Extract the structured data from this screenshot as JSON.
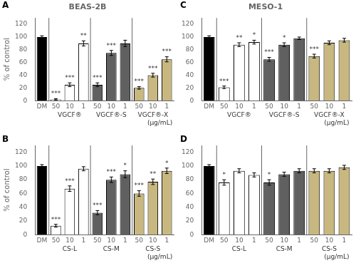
{
  "chart_data": [
    {
      "type": "bar",
      "panel_label": "A",
      "title": "BEAS-2B",
      "ylabel": "% of control",
      "categories": [
        "DM",
        "50",
        "10",
        "1",
        "50",
        "10",
        "1",
        "50",
        "10",
        "1"
      ],
      "values": [
        100,
        2,
        25,
        90,
        25,
        75,
        90,
        20,
        40,
        65
      ],
      "errors": [
        2,
        1,
        3,
        4,
        3,
        4,
        5,
        2,
        3,
        4
      ],
      "stars": [
        null,
        "***",
        "***",
        "**",
        "***",
        "***",
        null,
        "***",
        "***",
        "***"
      ],
      "colors": [
        "#000000",
        "#ffffff",
        "#ffffff",
        "#ffffff",
        "#606060",
        "#606060",
        "#606060",
        "#c8b880",
        "#c8b880",
        "#c8b880"
      ],
      "edge_color": "#000000",
      "group_labels": [
        "VGCF®",
        "VGCF®-S",
        "VGCF®-X"
      ],
      "unit_label": "(μg/mL)",
      "ylim": [
        0,
        130
      ],
      "yticks": [
        0,
        20,
        40,
        60,
        80,
        100,
        120
      ],
      "grid": false
    },
    {
      "type": "bar",
      "panel_label": "C",
      "title": "MESO-1",
      "categories": [
        "DM",
        "50",
        "10",
        "1",
        "50",
        "10",
        "1",
        "50",
        "10",
        "1"
      ],
      "values": [
        100,
        21,
        88,
        92,
        65,
        88,
        98,
        70,
        91,
        95
      ],
      "errors": [
        2,
        2,
        3,
        3,
        3,
        3,
        2,
        3,
        3,
        3
      ],
      "stars": [
        null,
        "***",
        "**",
        "*",
        "***",
        "*",
        null,
        "***",
        null,
        null
      ],
      "colors": [
        "#000000",
        "#ffffff",
        "#ffffff",
        "#ffffff",
        "#606060",
        "#606060",
        "#606060",
        "#c8b880",
        "#c8b880",
        "#c8b880"
      ],
      "edge_color": "#000000",
      "group_labels": [
        "VGCF®",
        "VGCF®-S",
        "VGCF®-X"
      ],
      "unit_label": "(μg/mL)",
      "ylim": [
        0,
        130
      ],
      "yticks": [
        0,
        20,
        40,
        60,
        80,
        100,
        120
      ],
      "grid": false
    },
    {
      "type": "bar",
      "panel_label": "B",
      "ylabel": "% of control",
      "categories": [
        "DM",
        "50",
        "10",
        "1",
        "50",
        "10",
        "1",
        "50",
        "10",
        "1"
      ],
      "values": [
        100,
        13,
        67,
        96,
        32,
        80,
        88,
        60,
        77,
        93
      ],
      "errors": [
        2,
        2,
        4,
        3,
        3,
        4,
        5,
        4,
        4,
        4
      ],
      "stars": [
        null,
        "***",
        "***",
        null,
        "***",
        "***",
        "*",
        "***",
        "**",
        "*"
      ],
      "colors": [
        "#000000",
        "#ffffff",
        "#ffffff",
        "#ffffff",
        "#606060",
        "#606060",
        "#606060",
        "#c8b880",
        "#c8b880",
        "#c8b880"
      ],
      "edge_color": "#000000",
      "group_labels": [
        "CS-L",
        "CS-M",
        "CS-S"
      ],
      "unit_label": "(μg/mL)",
      "ylim": [
        0,
        130
      ],
      "yticks": [
        0,
        20,
        40,
        60,
        80,
        100,
        120
      ],
      "grid": false
    },
    {
      "type": "bar",
      "panel_label": "D",
      "categories": [
        "DM",
        "50",
        "10",
        "1",
        "50",
        "10",
        "1",
        "50",
        "10",
        "1"
      ],
      "values": [
        100,
        76,
        93,
        87,
        76,
        88,
        93,
        93,
        93,
        98
      ],
      "errors": [
        2,
        4,
        3,
        3,
        4,
        3,
        3,
        3,
        3,
        3
      ],
      "stars": [
        null,
        "*",
        null,
        null,
        "*",
        null,
        null,
        null,
        null,
        null
      ],
      "colors": [
        "#000000",
        "#ffffff",
        "#ffffff",
        "#ffffff",
        "#606060",
        "#606060",
        "#606060",
        "#c8b880",
        "#c8b880",
        "#c8b880"
      ],
      "edge_color": "#000000",
      "group_labels": [
        "CS-L",
        "CS-M",
        "CS-S"
      ],
      "unit_label": "(μg/mL)",
      "ylim": [
        0,
        130
      ],
      "yticks": [
        0,
        20,
        40,
        60,
        80,
        100,
        120
      ],
      "grid": false
    }
  ]
}
